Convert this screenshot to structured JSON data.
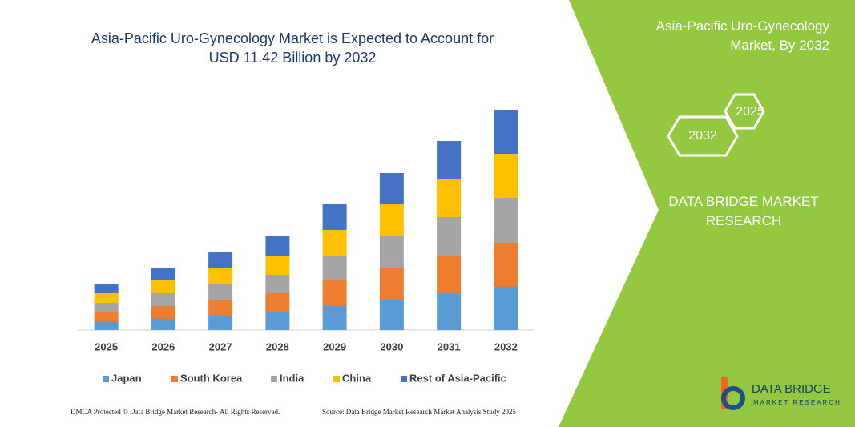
{
  "chart_data": {
    "type": "stacked-bar",
    "title": "Asia-Pacific Uro-Gynecology Market is Expected to Account for USD 11.42 Billion by 2032",
    "categories": [
      "2025",
      "2026",
      "2027",
      "2028",
      "2029",
      "2030",
      "2031",
      "2032"
    ],
    "series": [
      {
        "name": "Japan",
        "color": "#5b9bd5",
        "values": [
          10,
          14,
          18,
          22,
          30,
          38,
          46,
          54
        ]
      },
      {
        "name": "South Korea",
        "color": "#ed7d31",
        "values": [
          12,
          16,
          20,
          24,
          32,
          39,
          47,
          55
        ]
      },
      {
        "name": "India",
        "color": "#a5a5a5",
        "values": [
          12,
          16,
          20,
          23,
          31,
          40,
          48,
          56
        ]
      },
      {
        "name": "China",
        "color": "#ffc000",
        "values": [
          12,
          16,
          19,
          24,
          32,
          40,
          47,
          55
        ]
      },
      {
        "name": "Rest of Asia-Pacific",
        "color": "#4472c4",
        "values": [
          12,
          15,
          20,
          24,
          32,
          39,
          48,
          55
        ]
      }
    ]
  },
  "panel": {
    "title": "Asia-Pacific Uro-Gynecology Market, By 2032",
    "hex_front": "2032",
    "hex_back": "2025",
    "brand": "DATA BRIDGE MARKET RESEARCH"
  },
  "logo": {
    "name": "DATA BRIDGE",
    "tagline": "MARKET RESEARCH"
  },
  "footer": {
    "left": "DMCA Protected © Data Bridge Market Research- All Rights Reserved.",
    "right": "Source: Data Bridge Market Research Market Analysis Study 2025"
  }
}
